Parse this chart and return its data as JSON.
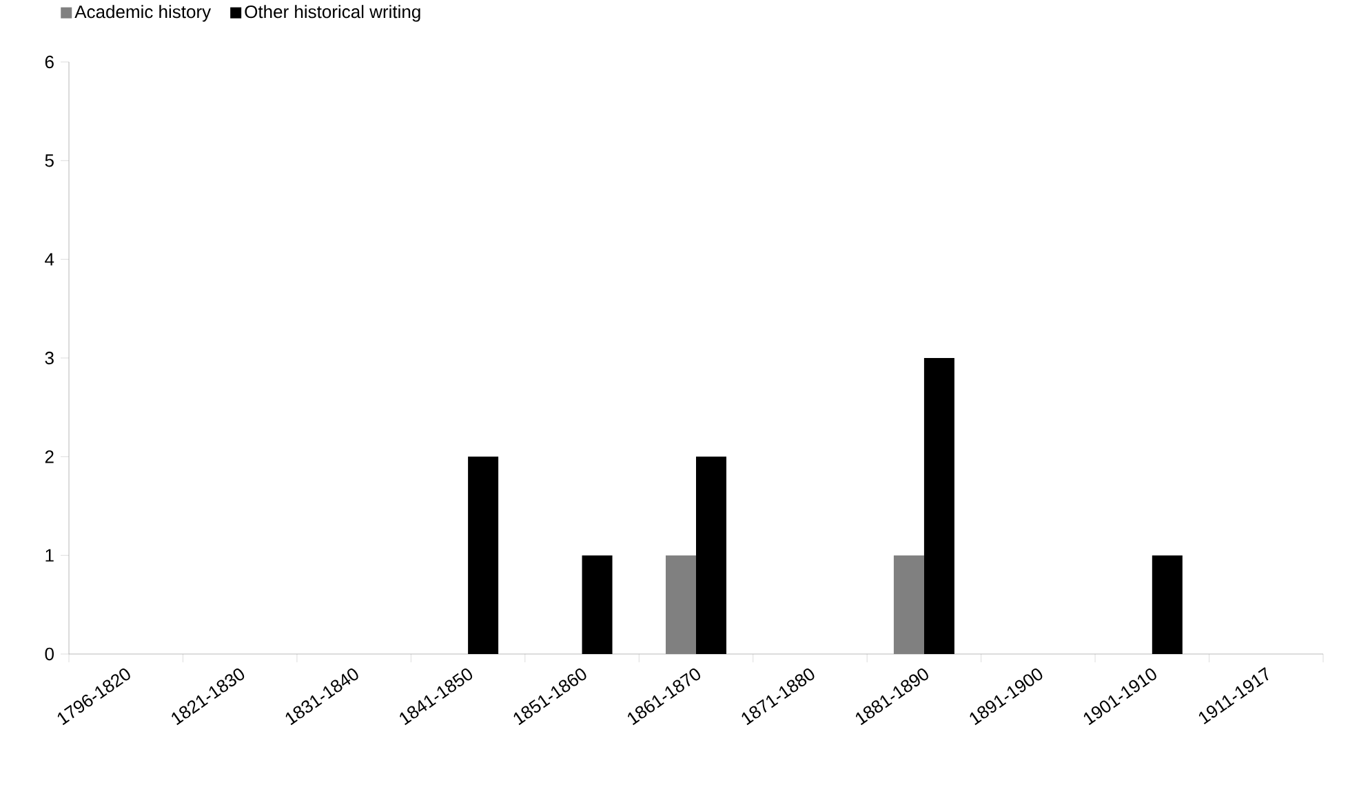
{
  "chart_data": {
    "type": "bar",
    "categories": [
      "1796-1820",
      "1821-1830",
      "1831-1840",
      "1841-1850",
      "1851-1860",
      "1861-1870",
      "1871-1880",
      "1881-1890",
      "1891-1900",
      "1901-1910",
      "1911-1917"
    ],
    "series": [
      {
        "name": "Academic history",
        "color": "#808080",
        "values": [
          0,
          0,
          0,
          0,
          0,
          1,
          0,
          1,
          0,
          0,
          0
        ]
      },
      {
        "name": "Other historical writing",
        "color": "#000000",
        "values": [
          0,
          0,
          0,
          2,
          1,
          2,
          0,
          3,
          0,
          1,
          0
        ]
      }
    ],
    "ylim": [
      0,
      6
    ],
    "yticks": [
      0,
      1,
      2,
      3,
      4,
      5,
      6
    ],
    "grid": false,
    "legend": "top left"
  }
}
